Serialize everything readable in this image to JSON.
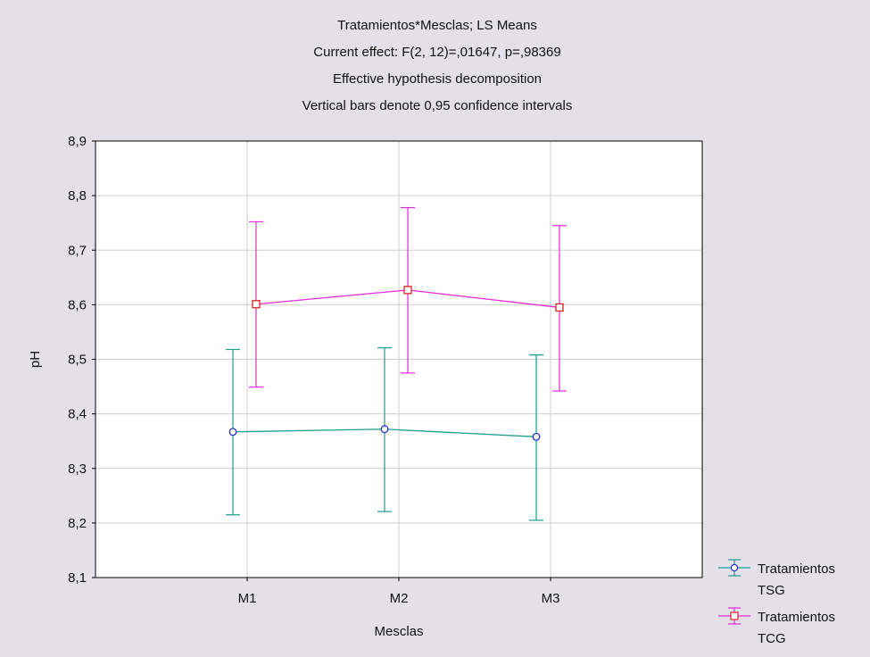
{
  "chart_data": {
    "type": "line",
    "title_lines": [
      "Tratamientos*Mesclas; LS Means",
      "Current effect: F(2, 12)=,01647, p=,98369",
      "Effective hypothesis decomposition",
      "Vertical bars denote 0,95 confidence intervals"
    ],
    "xlabel": "Mesclas",
    "ylabel": "pH",
    "categories": [
      "M1",
      "M2",
      "M3"
    ],
    "ylim": [
      8.1,
      8.9
    ],
    "yticks": [
      8.1,
      8.2,
      8.3,
      8.4,
      8.5,
      8.6,
      8.7,
      8.8,
      8.9
    ],
    "ytick_labels": [
      "8,1",
      "8,2",
      "8,3",
      "8,4",
      "8,5",
      "8,6",
      "8,7",
      "8,8",
      "8,9"
    ],
    "grid": true,
    "legend_position": "bottom-right",
    "series": [
      {
        "name": "Tratamientos TSG",
        "legend_lines": [
          "Tratamientos",
          "TSG"
        ],
        "color": "#1a9e8f",
        "marker_color": "#2233cc",
        "marker": "circle",
        "values": [
          8.367,
          8.372,
          8.358
        ],
        "ci_low": [
          8.215,
          8.221,
          8.205
        ],
        "ci_high": [
          8.518,
          8.521,
          8.508
        ]
      },
      {
        "name": "Tratamientos TCG",
        "legend_lines": [
          "Tratamientos",
          "TCG"
        ],
        "color": "#e52ad8",
        "marker_color": "#dd2222",
        "marker": "square",
        "values": [
          8.601,
          8.627,
          8.595
        ],
        "ci_low": [
          8.449,
          8.475,
          8.442
        ],
        "ci_high": [
          8.752,
          8.778,
          8.745
        ]
      }
    ]
  }
}
